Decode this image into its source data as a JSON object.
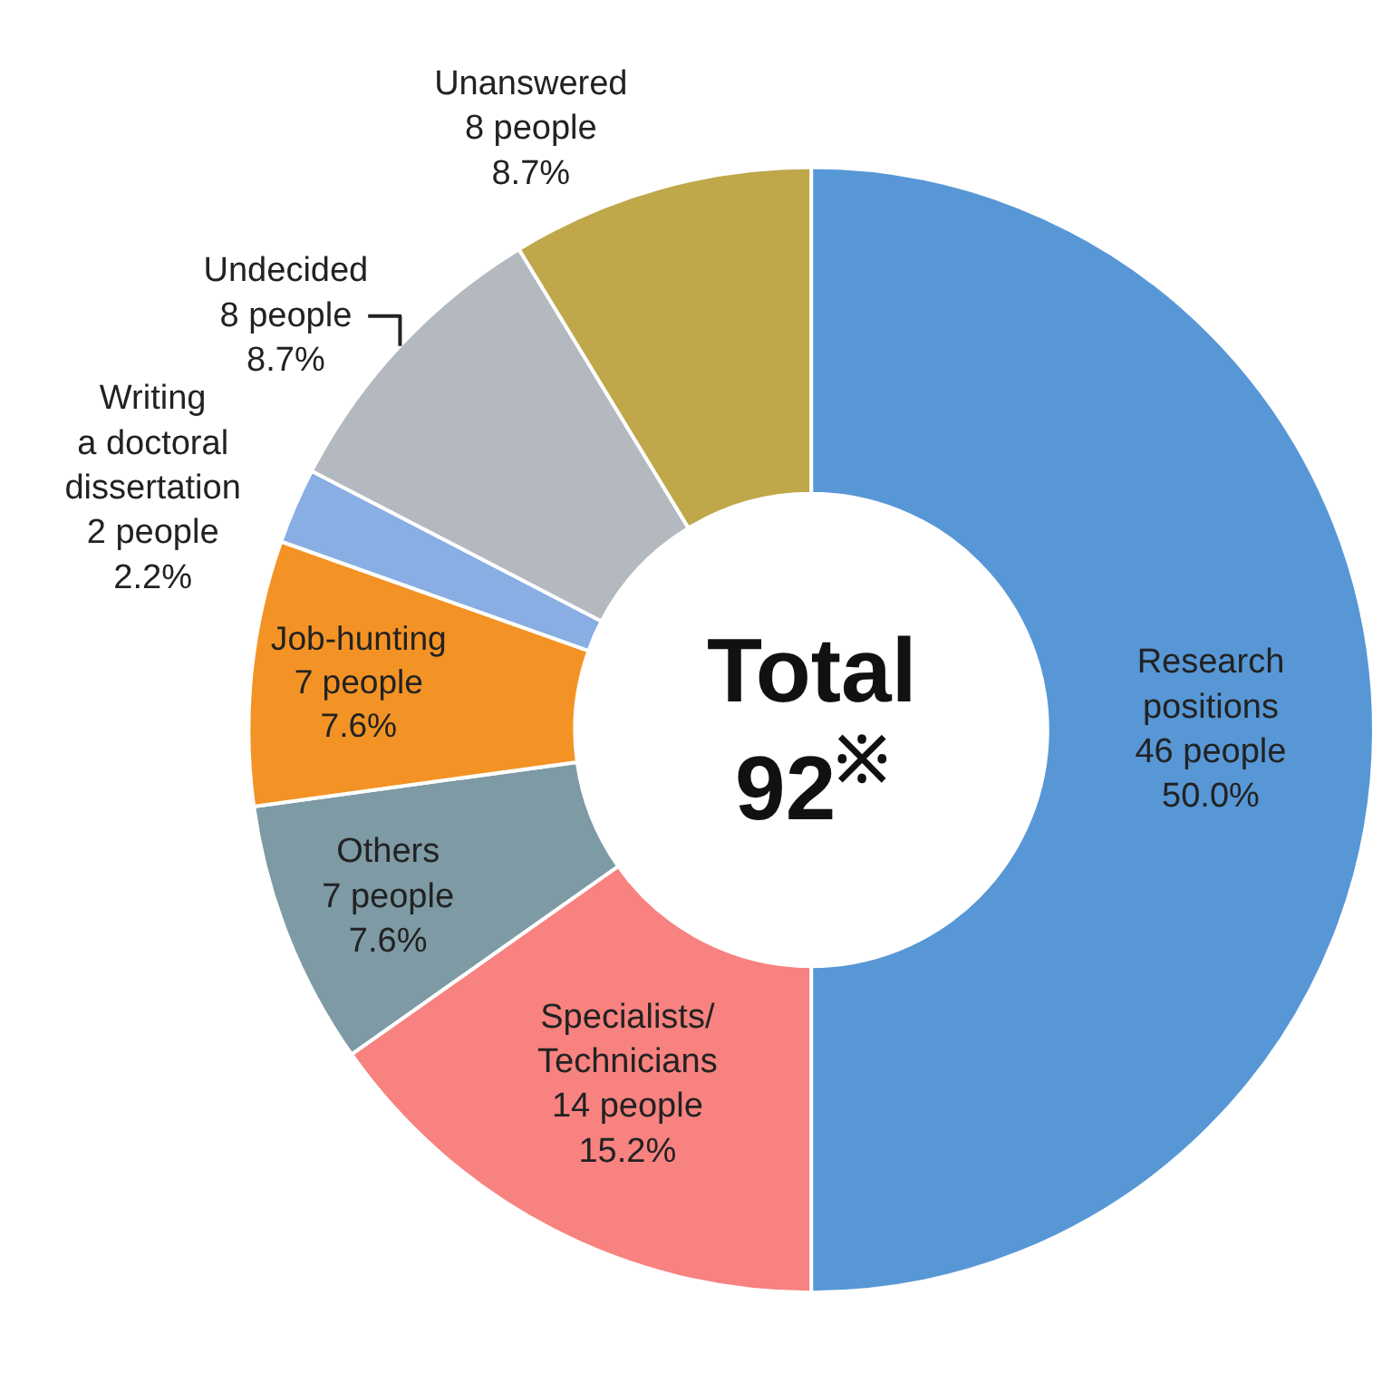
{
  "chart_data": {
    "type": "donut",
    "categories": [
      "Research\npositions",
      "Specialists/\nTechnicians",
      "Others",
      "Job-hunting",
      "Writing\na doctoral\ndissertation",
      "Undecided",
      "Unanswered"
    ],
    "values": [
      46,
      14,
      7,
      7,
      2,
      8,
      8
    ],
    "value_labels": [
      "46 people\n50.0%",
      "14 people\n15.2%",
      "7 people\n7.6%",
      "7 people\n7.6%",
      "2 people\n2.2%",
      "8 people\n8.7%",
      "8 people\n8.7%"
    ],
    "colors": [
      "#5797d6",
      "#f7827f",
      "#7d9aa5",
      "#f39325",
      "#88aee3",
      "#b3b9bf",
      "#bfa74a"
    ],
    "annotations": [
      "Total\n92$^{※}$"
    ],
    "legend": false
  }
}
